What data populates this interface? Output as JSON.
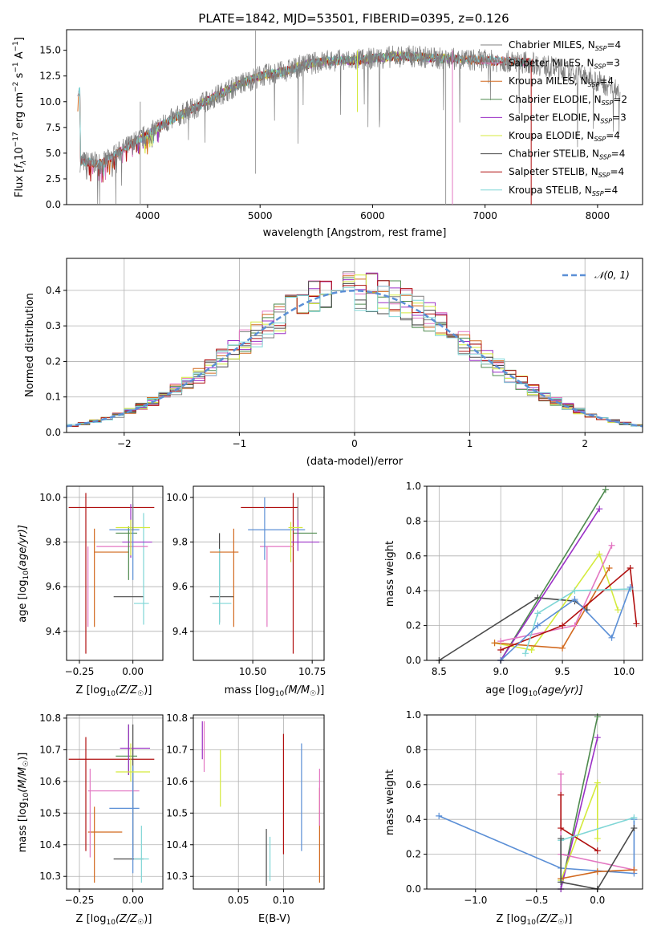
{
  "title": "PLATE=1842, MJD=53501, FIBERID=0395, z=0.126",
  "colors": {
    "chabrier_miles": "#808080",
    "salpeter_miles": "#e377c2",
    "kroupa_miles": "#d2691e",
    "chabrier_elodie": "#4e8a4e",
    "salpeter_elodie": "#9b30c6",
    "kroupa_elodie": "#d4ea3c",
    "chabrier_stelib": "#4a4a4a",
    "salpeter_stelib": "#b01010",
    "kroupa_stelib": "#7fd6d6",
    "gauss": "#5b8fd6"
  },
  "legend": {
    "entries": [
      "Chabrier MILES, N_SSP=4",
      "Salpeter MILES, N_SSP=3",
      "Kroupa MILES, N_SSP=4",
      "Chabrier ELODIE, N_SSP=2",
      "Salpeter ELODIE, N_SSP=3",
      "Kroupa ELODIE, N_SSP=4",
      "Chabrier STELIB, N_SSP=4",
      "Salpeter STELIB, N_SSP=4",
      "Kroupa STELIB, N_SSP=4"
    ],
    "labels": [
      "Chabrier MILES, N",
      "Salpeter MILES, N",
      "Kroupa MILES, N",
      "Chabrier ELODIE, N",
      "Salpeter ELODIE, N",
      "Kroupa ELODIE, N",
      "Chabrier STELIB, N",
      "Salpeter STELIB, N",
      "Kroupa STELIB, N"
    ],
    "subs": [
      "SSP",
      "SSP",
      "SSP",
      "SSP",
      "SSP",
      "SSP",
      "SSP",
      "SSP",
      "SSP"
    ],
    "values": [
      "=4",
      "=3",
      "=4",
      "=2",
      "=3",
      "=4",
      "=4",
      "=4",
      "=4"
    ]
  },
  "spectrum_axes": {
    "xlabel": "wavelength [Angstrom, rest frame]",
    "ylabel": "Flux [f_λ 10^-17 erg cm^-2 s^-1 A^-1]",
    "ylabel_parts": {
      "a": "Flux [",
      "b": "f",
      "c": "λ",
      "d": "10",
      "e": "−17",
      "f": " erg cm",
      "g": "−2",
      "h": " s",
      "i": "−1",
      "j": " A",
      "k": "−1",
      "l": "]"
    },
    "xticks": [
      "4000",
      "5000",
      "6000",
      "7000",
      "8000"
    ],
    "yticks": [
      "0.0",
      "2.5",
      "5.0",
      "7.5",
      "10.0",
      "12.5",
      "15.0"
    ]
  },
  "hist_axes": {
    "xlabel": "(data-model)/error",
    "ylabel": "Normed distribution",
    "xticks": [
      "−2",
      "−1",
      "0",
      "1",
      "2"
    ],
    "yticks": [
      "0.0",
      "0.1",
      "0.2",
      "0.3",
      "0.4"
    ],
    "legend": "𝒩(0, 1)"
  },
  "chart_data": [
    {
      "type": "line",
      "title": "PLATE=1842, MJD=53501, FIBERID=0395, z=0.126",
      "xlabel": "wavelength [Angstrom, rest frame]",
      "ylabel": "Flux [f_λ 10^-17 erg cm^-2 s^-1 A^-1]",
      "xlim": [
        3280,
        8400
      ],
      "ylim": [
        0,
        17
      ],
      "x": [
        3400,
        3600,
        3800,
        4000,
        4200,
        4400,
        4600,
        4800,
        5000,
        5200,
        5400,
        5600,
        5800,
        6000,
        6200,
        6400,
        6600,
        6800,
        7000,
        7200,
        7400,
        7600,
        7800,
        8000,
        8200
      ],
      "series": [
        {
          "name": "data",
          "values": [
            4.2,
            4.0,
            5.5,
            6.8,
            8.2,
            9.3,
            10.5,
            11.6,
            12.5,
            12.9,
            13.6,
            14.0,
            14.0,
            14.2,
            14.4,
            14.4,
            14.2,
            14.1,
            14.0,
            13.9,
            13.8,
            13.3,
            12.8,
            12.0,
            11.0
          ]
        }
      ]
    },
    {
      "type": "line",
      "xlabel": "(data-model)/error",
      "ylabel": "Normed distribution",
      "xlim": [
        -2.5,
        2.5
      ],
      "ylim": [
        0,
        0.49
      ],
      "series_note": "step histograms of 9 model fits with Gaussian N(0,1) overlay",
      "x": [
        -2.4,
        -2.0,
        -1.6,
        -1.2,
        -0.8,
        -0.4,
        0.0,
        0.4,
        0.8,
        1.2,
        1.6,
        2.0,
        2.4
      ],
      "series": [
        {
          "name": "𝒩(0, 1)",
          "values": [
            0.022,
            0.054,
            0.111,
            0.194,
            0.29,
            0.368,
            0.399,
            0.368,
            0.29,
            0.194,
            0.111,
            0.054,
            0.022
          ]
        }
      ]
    },
    {
      "type": "scatter",
      "xlabel": "Z [log10(Z/Z☉)]",
      "ylabel": "age [log10(age/yr)]",
      "xlim": [
        -0.31,
        0.14
      ],
      "ylim": [
        9.27,
        10.05
      ],
      "points": [
        {
          "x": -0.16,
          "y": 9.96,
          "dx": 0.3,
          "dy": 0.06
        },
        {
          "x": 0.0,
          "y": 9.86,
          "dx": 0.07,
          "dy": 0.1
        },
        {
          "x": 0.04,
          "y": 9.52,
          "dx": 0.1,
          "dy": 0.09
        }
      ]
    },
    {
      "type": "scatter",
      "xlabel": "mass [log10(M/M☉)]",
      "ylabel": "age [log10(age/yr)]",
      "xlim": [
        10.25,
        10.8
      ],
      "ylim": [
        9.27,
        10.05
      ]
    },
    {
      "type": "line",
      "xlabel": "age [log10(age/yr)]",
      "ylabel": "mass weight",
      "xlim": [
        8.4,
        10.15
      ],
      "ylim": [
        0,
        1.0
      ]
    },
    {
      "type": "scatter",
      "xlabel": "Z [log10(Z/Z☉)]",
      "ylabel": "mass [log10(M/M☉)]",
      "xlim": [
        -0.31,
        0.14
      ],
      "ylim": [
        10.26,
        10.81
      ]
    },
    {
      "type": "scatter",
      "xlabel": "E(B-V)",
      "ylabel": "",
      "xlim": [
        0.0,
        0.145
      ],
      "ylim": [
        10.26,
        10.81
      ]
    },
    {
      "type": "line",
      "xlabel": "Z [log10(Z/Z☉)]",
      "ylabel": "mass weight",
      "xlim": [
        -1.4,
        0.37
      ],
      "ylim": [
        0,
        1.0
      ]
    }
  ],
  "small_axes": {
    "p3": {
      "xticks": [
        "−0.25",
        "0.00"
      ],
      "yticks": [
        "9.4",
        "9.6",
        "9.8",
        "10.0"
      ],
      "xlabel": "Z [log",
      "xsub": "10",
      "xrest": "(Z/Z",
      "xsun": "☉",
      "xend": ")]",
      "ylabel": "age  [log",
      "ysub": "10",
      "yrest": "(age/yr)]"
    },
    "p4": {
      "xticks": [
        "10.50",
        "10.75"
      ],
      "yticks": [
        "9.4",
        "9.6",
        "9.8",
        "10.0"
      ],
      "xlabel": "mass [log",
      "xsub": "10",
      "xrest": "(M/M",
      "xsun": "☉",
      "xend": ")]"
    },
    "p5": {
      "xticks": [
        "8.5",
        "9.0",
        "9.5",
        "10.0"
      ],
      "yticks": [
        "0.0",
        "0.2",
        "0.4",
        "0.6",
        "0.8",
        "1.0"
      ],
      "xlabel": "age  [log",
      "xsub": "10",
      "xrest": "(age/yr)]",
      "ylabel": "mass weight"
    },
    "p6": {
      "xticks": [
        "−0.25",
        "0.00"
      ],
      "yticks": [
        "10.3",
        "10.4",
        "10.5",
        "10.6",
        "10.7",
        "10.8"
      ],
      "xlabel": "Z [log",
      "xsub": "10",
      "xrest": "(Z/Z",
      "xsun": "☉",
      "xend": ")]",
      "ylabel": "mass [log",
      "ysub": "10",
      "yrest": "(M/M",
      "ysun": "☉",
      "yend": ")]"
    },
    "p7": {
      "xticks": [
        "0.05",
        "0.10"
      ],
      "yticks": [
        "10.3",
        "10.4",
        "10.5",
        "10.6",
        "10.7",
        "10.8"
      ],
      "xlabel": "E(B-V)"
    },
    "p8": {
      "xticks": [
        "−1.0",
        "−0.5",
        "0.0"
      ],
      "yticks": [
        "0.0",
        "0.2",
        "0.4",
        "0.6",
        "0.8",
        "1.0"
      ],
      "xlabel": "Z [log",
      "xsub": "10",
      "xrest": "(Z/Z",
      "xsun": "☉",
      "xend": ")]",
      "ylabel": "mass weight"
    }
  }
}
